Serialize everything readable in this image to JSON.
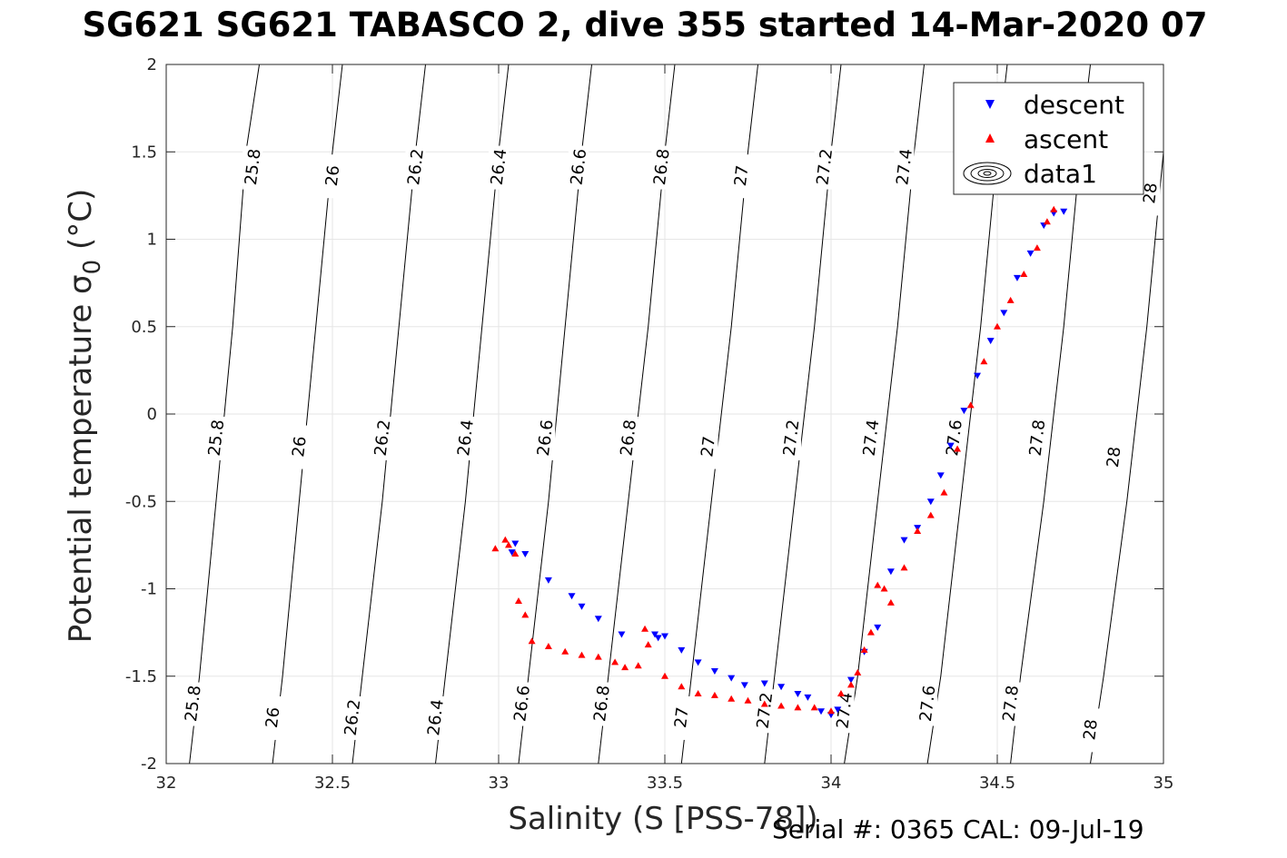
{
  "title": "SG621 SG621 TABASCO 2, dive 355 started 14-Mar-2020 07",
  "footer": {
    "serial": "Serial #: 0365  CAL: 09-Jul-19"
  },
  "colors": {
    "descent": "#0000ff",
    "ascent": "#ff0000",
    "contour": "#000000",
    "grid": "#e6e6e6"
  },
  "chart_data": {
    "type": "scatter",
    "xlabel": "Salinity (S [PSS-78])",
    "ylabel": "Potential temperature σ_0 (°C)",
    "xlim": [
      32,
      35
    ],
    "ylim": [
      -2,
      2
    ],
    "xticks": [
      32,
      32.5,
      33,
      33.5,
      34,
      34.5,
      35
    ],
    "xtick_labels": [
      "32",
      "32.5",
      "33",
      "33.5",
      "34",
      "34.5",
      "35"
    ],
    "yticks": [
      2,
      1.5,
      1,
      0.5,
      0,
      -0.5,
      -1,
      -1.5,
      -2
    ],
    "ytick_labels": [
      "2",
      "1.5",
      "1",
      "0.5",
      "0",
      "-0.5",
      "-1",
      "-1.5",
      "-2"
    ],
    "grid": true,
    "legend": {
      "placement": "top-right",
      "entries": [
        "descent",
        "ascent",
        "data1"
      ]
    },
    "contours": {
      "levels": [
        "25.8",
        "26",
        "26.2",
        "26.4",
        "26.6",
        "26.8",
        "27",
        "27.2",
        "27.4",
        "27.6",
        "27.8",
        "28"
      ],
      "lines": [
        [
          [
            32.07,
            -2
          ],
          [
            32.1,
            -1.5
          ],
          [
            32.15,
            -0.5
          ],
          [
            32.2,
            0.5
          ],
          [
            32.24,
            1.5
          ],
          [
            32.28,
            2
          ]
        ],
        [
          [
            32.32,
            -2
          ],
          [
            32.35,
            -1.5
          ],
          [
            32.4,
            -0.5
          ],
          [
            32.45,
            0.5
          ],
          [
            32.5,
            1.5
          ],
          [
            32.53,
            2
          ]
        ],
        [
          [
            32.56,
            -2
          ],
          [
            32.59,
            -1.5
          ],
          [
            32.65,
            -0.5
          ],
          [
            32.7,
            0.5
          ],
          [
            32.75,
            1.5
          ],
          [
            32.78,
            2
          ]
        ],
        [
          [
            32.81,
            -2
          ],
          [
            32.84,
            -1.5
          ],
          [
            32.9,
            -0.5
          ],
          [
            32.95,
            0.5
          ],
          [
            33.0,
            1.5
          ],
          [
            33.03,
            2
          ]
        ],
        [
          [
            33.06,
            -2
          ],
          [
            33.09,
            -1.5
          ],
          [
            33.15,
            -0.5
          ],
          [
            33.2,
            0.5
          ],
          [
            33.25,
            1.5
          ],
          [
            33.28,
            2
          ]
        ],
        [
          [
            33.3,
            -2
          ],
          [
            33.33,
            -1.5
          ],
          [
            33.39,
            -0.5
          ],
          [
            33.45,
            0.5
          ],
          [
            33.5,
            1.5
          ],
          [
            33.53,
            2
          ]
        ],
        [
          [
            33.55,
            -2
          ],
          [
            33.58,
            -1.5
          ],
          [
            33.64,
            -0.5
          ],
          [
            33.7,
            0.5
          ],
          [
            33.75,
            1.5
          ],
          [
            33.78,
            2
          ]
        ],
        [
          [
            33.8,
            -2
          ],
          [
            33.83,
            -1.5
          ],
          [
            33.89,
            -0.5
          ],
          [
            33.95,
            0.5
          ],
          [
            34.0,
            1.5
          ],
          [
            34.03,
            2
          ]
        ],
        [
          [
            34.04,
            -2
          ],
          [
            34.08,
            -1.5
          ],
          [
            34.14,
            -0.5
          ],
          [
            34.2,
            0.5
          ],
          [
            34.25,
            1.5
          ],
          [
            34.28,
            2
          ]
        ],
        [
          [
            34.29,
            -2
          ],
          [
            34.33,
            -1.5
          ],
          [
            34.39,
            -0.5
          ],
          [
            34.45,
            0.5
          ],
          [
            34.5,
            1.5
          ],
          [
            34.53,
            2
          ]
        ],
        [
          [
            34.54,
            -2
          ],
          [
            34.57,
            -1.5
          ],
          [
            34.64,
            -0.5
          ],
          [
            34.7,
            0.5
          ],
          [
            34.75,
            1.5
          ],
          [
            34.78,
            2
          ]
        ],
        [
          [
            34.78,
            -2
          ],
          [
            34.82,
            -1.5
          ],
          [
            34.89,
            -0.5
          ],
          [
            34.95,
            0.5
          ],
          [
            35.0,
            1.5
          ]
        ]
      ],
      "labels": [
        [
          32.08,
          -1.66,
          "25.8"
        ],
        [
          32.15,
          -0.14,
          "25.8"
        ],
        [
          32.26,
          1.41,
          "25.8"
        ],
        [
          32.32,
          -1.74,
          "26"
        ],
        [
          32.4,
          -0.19,
          "26"
        ],
        [
          32.5,
          1.36,
          "26"
        ],
        [
          32.56,
          -1.74,
          "26.2"
        ],
        [
          32.65,
          -0.14,
          "26.2"
        ],
        [
          32.75,
          1.41,
          "26.2"
        ],
        [
          32.81,
          -1.74,
          "26.4"
        ],
        [
          32.9,
          -0.14,
          "26.4"
        ],
        [
          33.0,
          1.41,
          "26.4"
        ],
        [
          33.07,
          -1.66,
          "26.6"
        ],
        [
          33.14,
          -0.14,
          "26.6"
        ],
        [
          33.24,
          1.41,
          "26.6"
        ],
        [
          33.31,
          -1.66,
          "26.8"
        ],
        [
          33.39,
          -0.14,
          "26.8"
        ],
        [
          33.49,
          1.41,
          "26.8"
        ],
        [
          33.55,
          -1.74,
          "27"
        ],
        [
          33.63,
          -0.19,
          "27"
        ],
        [
          33.73,
          1.36,
          "27"
        ],
        [
          33.8,
          -1.7,
          "27.2"
        ],
        [
          33.88,
          -0.14,
          "27.2"
        ],
        [
          33.98,
          1.41,
          "27.2"
        ],
        [
          34.04,
          -1.7,
          "27.4"
        ],
        [
          34.12,
          -0.14,
          "27.4"
        ],
        [
          34.22,
          1.41,
          "27.4"
        ],
        [
          34.29,
          -1.66,
          "27.6"
        ],
        [
          34.37,
          -0.14,
          "27.6"
        ],
        [
          34.54,
          -1.66,
          "27.8"
        ],
        [
          34.62,
          -0.14,
          "27.8"
        ],
        [
          34.78,
          -1.81,
          "28"
        ],
        [
          34.85,
          -0.25,
          "28"
        ],
        [
          34.96,
          1.26,
          "28"
        ]
      ]
    },
    "series": [
      {
        "name": "descent",
        "marker": "triangle-down",
        "x": [
          33.05,
          33.04,
          33.08,
          33.15,
          33.22,
          33.25,
          33.3,
          33.37,
          33.47,
          33.48,
          33.5,
          33.55,
          33.6,
          33.65,
          33.7,
          33.74,
          33.8,
          33.85,
          33.9,
          33.93,
          33.97,
          34.0,
          34.02,
          34.06,
          34.1,
          34.14,
          34.18,
          34.22,
          34.26,
          34.3,
          34.33,
          34.36,
          34.4,
          34.44,
          34.48,
          34.52,
          34.56,
          34.6,
          34.64,
          34.67,
          34.7
        ],
        "y": [
          -0.74,
          -0.79,
          -0.8,
          -0.95,
          -1.04,
          -1.1,
          -1.17,
          -1.26,
          -1.26,
          -1.28,
          -1.27,
          -1.35,
          -1.42,
          -1.47,
          -1.51,
          -1.55,
          -1.54,
          -1.56,
          -1.6,
          -1.62,
          -1.7,
          -1.72,
          -1.69,
          -1.52,
          -1.36,
          -1.22,
          -0.9,
          -0.72,
          -0.65,
          -0.5,
          -0.35,
          -0.18,
          0.02,
          0.22,
          0.42,
          0.58,
          0.78,
          0.92,
          1.08,
          1.15,
          1.16
        ]
      },
      {
        "name": "ascent",
        "marker": "triangle-up",
        "x": [
          32.99,
          33.02,
          33.03,
          33.05,
          33.06,
          33.08,
          33.1,
          33.15,
          33.2,
          33.25,
          33.3,
          33.35,
          33.38,
          33.42,
          33.44,
          33.45,
          33.5,
          33.55,
          33.6,
          33.65,
          33.7,
          33.75,
          33.8,
          33.85,
          33.9,
          33.95,
          34.0,
          34.03,
          34.06,
          34.08,
          34.1,
          34.12,
          34.14,
          34.16,
          34.18,
          34.22,
          34.26,
          34.3,
          34.34,
          34.38,
          34.42,
          34.46,
          34.5,
          34.54,
          34.58,
          34.62,
          34.65,
          34.67
        ],
        "y": [
          -0.77,
          -0.72,
          -0.75,
          -0.8,
          -1.07,
          -1.15,
          -1.3,
          -1.33,
          -1.36,
          -1.38,
          -1.39,
          -1.42,
          -1.45,
          -1.44,
          -1.23,
          -1.32,
          -1.5,
          -1.56,
          -1.6,
          -1.61,
          -1.63,
          -1.64,
          -1.66,
          -1.67,
          -1.68,
          -1.68,
          -1.7,
          -1.6,
          -1.55,
          -1.48,
          -1.35,
          -1.25,
          -0.98,
          -1.0,
          -1.08,
          -0.88,
          -0.67,
          -0.58,
          -0.45,
          -0.2,
          0.05,
          0.3,
          0.5,
          0.65,
          0.8,
          0.95,
          1.1,
          1.17
        ]
      }
    ]
  }
}
